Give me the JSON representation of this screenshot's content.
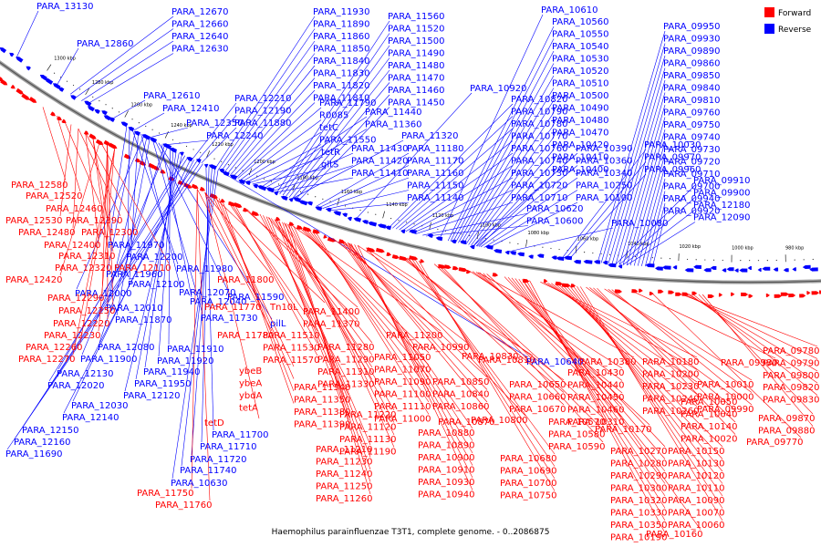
{
  "title": "Haemophilus parainfluenzae T3T1, complete genome. - 0..2086875",
  "legend": [
    {
      "label": "Forward",
      "color": "#ff0000"
    },
    {
      "label": "Reverse",
      "color": "#0000ff"
    }
  ],
  "scale_ticks": [
    {
      "label": "1300 kbp",
      "side": "upper"
    },
    {
      "label": "1280 kbp",
      "side": "upper"
    },
    {
      "label": "1260 kbp",
      "side": "upper"
    },
    {
      "label": "1240 kbp",
      "side": "upper"
    },
    {
      "label": "1220 kbp",
      "side": "upper"
    },
    {
      "label": "1200 kbp",
      "side": "upper"
    },
    {
      "label": "1180 kbp",
      "side": "upper"
    },
    {
      "label": "1160 kbp",
      "side": "upper"
    },
    {
      "label": "1140 kbp",
      "side": "upper"
    },
    {
      "label": "1120 kbp",
      "side": "upper"
    },
    {
      "label": "1100 kbp",
      "side": "upper"
    },
    {
      "label": "1080 kbp",
      "side": "upper"
    },
    {
      "label": "1060 kbp",
      "side": "upper"
    },
    {
      "label": "1040 kbp",
      "side": "upper"
    },
    {
      "label": "1020 kbp",
      "side": "upper"
    },
    {
      "label": "1000 kbp",
      "side": "upper"
    },
    {
      "label": "980 kbp",
      "side": "upper"
    }
  ],
  "reverse_labels": [
    "PARA_13130",
    "PARA_12670",
    "PARA_12660",
    "PARA_12640",
    "PARA_12630",
    "PARA_12860",
    "PARA_12610",
    "PARA_12410",
    "PARA_12350",
    "PARA_12240",
    "PARA_12210",
    "PARA_12190",
    "PARA_11880",
    "PARA_11930",
    "PARA_11890",
    "PARA_11860",
    "PARA_11850",
    "PARA_11840",
    "PARA_11830",
    "PARA_11820",
    "PARA_11810",
    "PARA_11790",
    "R0085",
    "tetC",
    "PARA_11550",
    "tetR",
    "gltS",
    "PARA_11560",
    "PARA_11520",
    "PARA_11500",
    "PARA_11490",
    "PARA_11480",
    "PARA_11470",
    "PARA_11460",
    "PARA_11450",
    "PARA_11440",
    "PARA_11360",
    "PARA_11320",
    "PARA_11430",
    "PARA_11420",
    "PARA_11410",
    "PARA_11180",
    "PARA_11170",
    "PARA_11160",
    "PARA_11150",
    "PARA_11140",
    "PARA_10920",
    "PARA_10820",
    "PARA_10790",
    "PARA_10780",
    "PARA_10770",
    "PARA_10760",
    "PARA_10740",
    "PARA_10730",
    "PARA_10720",
    "PARA_10710",
    "PARA_10620",
    "PARA_10600",
    "PARA_10610",
    "PARA_10560",
    "PARA_10550",
    "PARA_10540",
    "PARA_10530",
    "PARA_10520",
    "PARA_10510",
    "PARA_10500",
    "PARA_10490",
    "PARA_10480",
    "PARA_10470",
    "PARA_10420",
    "PARA_10410",
    "PARA_10400",
    "PARA_10390",
    "PARA_10360",
    "PARA_10340",
    "PARA_10250",
    "PARA_10100",
    "PARA_10080",
    "PARA_10030",
    "PARA_09970",
    "PARA_09960",
    "PARA_09950",
    "PARA_09930",
    "PARA_09890",
    "PARA_09860",
    "PARA_09850",
    "PARA_09840",
    "PARA_09810",
    "PARA_09760",
    "PARA_09750",
    "PARA_09740",
    "PARA_09730",
    "PARA_09720",
    "PARA_09710",
    "PARA_09700",
    "PARA_09940",
    "PARA_09920",
    "PARA_09910",
    "PARA_09900",
    "PARA_12180",
    "PARA_12090",
    "PARA_11970",
    "PARA_12200",
    "PARA_11980",
    "PARA_11960",
    "PARA_12100",
    "PARA_12070",
    "PARA_12000",
    "PARA_12010",
    "PARA_11870",
    "PARA_11730",
    "PARA_11590",
    "pilL",
    "PARA_12040",
    "PARA_12080",
    "PARA_11900",
    "PARA_11910",
    "PARA_11920",
    "PARA_11940",
    "PARA_11950",
    "PARA_12120",
    "PARA_12130",
    "PARA_12020",
    "PARA_12030",
    "PARA_12140",
    "PARA_12150",
    "PARA_12160",
    "PARA_11690",
    "PARA_11700",
    "PARA_11710",
    "PARA_11720",
    "PARA_11740",
    "PARA_10630",
    "PARA_10640"
  ],
  "forward_labels": [
    "PARA_12580",
    "PARA_12520",
    "PARA_12460",
    "PARA_12530",
    "PARA_12390",
    "PARA_12480",
    "PARA_12300",
    "PARA_12400",
    "PARA_12310",
    "PARA_12320",
    "PARA_12110",
    "PARA_12420",
    "PARA_12290",
    "PARA_12250",
    "PARA_12220",
    "PARA_12230",
    "PARA_12260",
    "PARA_12270",
    "PARA_11800",
    "PARA_11770",
    "Tn10L",
    "PARA_11780",
    "PARA_11400",
    "PARA_11370",
    "PARA_11510",
    "PARA_11530",
    "PARA_11570",
    "ybeB",
    "ybeA",
    "ybdA",
    "tetA",
    "tetD",
    "PARA_11280",
    "PARA_11290",
    "PARA_11310",
    "PARA_11330",
    "PARA_11340",
    "PARA_11350",
    "PARA_11380",
    "PARA_11390",
    "PARA_11200",
    "PARA_11050",
    "PARA_11070",
    "PARA_11090",
    "PARA_11100",
    "PARA_11110",
    "PARA_11000",
    "PARA_11220",
    "PARA_11120",
    "PARA_11130",
    "PARA_11190",
    "PARA_11210",
    "PARA_11230",
    "PARA_11240",
    "PARA_11250",
    "PARA_11260",
    "PARA_10990",
    "PARA_10830",
    "PARA_10850",
    "PARA_10840",
    "PARA_10860",
    "PARA_10810",
    "PARA_10800",
    "PARA_10870",
    "PARA_10880",
    "PARA_10890",
    "PARA_10900",
    "PARA_10910",
    "PARA_10930",
    "PARA_10940",
    "PARA_10650",
    "PARA_10660",
    "PARA_10670",
    "PARA_10570",
    "PARA_10580",
    "PARA_10590",
    "PARA_10680",
    "PARA_10690",
    "PARA_10700",
    "PARA_10750",
    "PARA_10380",
    "PARA_10430",
    "PARA_10440",
    "PARA_10450",
    "PARA_10460",
    "PARA_10310",
    "PARA_10170",
    "PARA_10180",
    "PARA_10200",
    "PARA_10230",
    "PARA_10240",
    "PARA_10260",
    "PARA_10270",
    "PARA_10280",
    "PARA_10290",
    "PARA_10300",
    "PARA_10320",
    "PARA_10330",
    "PARA_10350",
    "PARA_10190",
    "PARA_10160",
    "PARA_10150",
    "PARA_10130",
    "PARA_10120",
    "PARA_10110",
    "PARA_10090",
    "PARA_10070",
    "PARA_10060",
    "PARA_10050",
    "PARA_10040",
    "PARA_10140",
    "PARA_10020",
    "PARA_10010",
    "PARA_10000",
    "PARA_09990",
    "PARA_09980",
    "PARA_09770",
    "PARA_09780",
    "PARA_09790",
    "PARA_09800",
    "PARA_09820",
    "PARA_09830",
    "PARA_09870",
    "PARA_09880",
    "PARA_11750",
    "PARA_11760"
  ]
}
